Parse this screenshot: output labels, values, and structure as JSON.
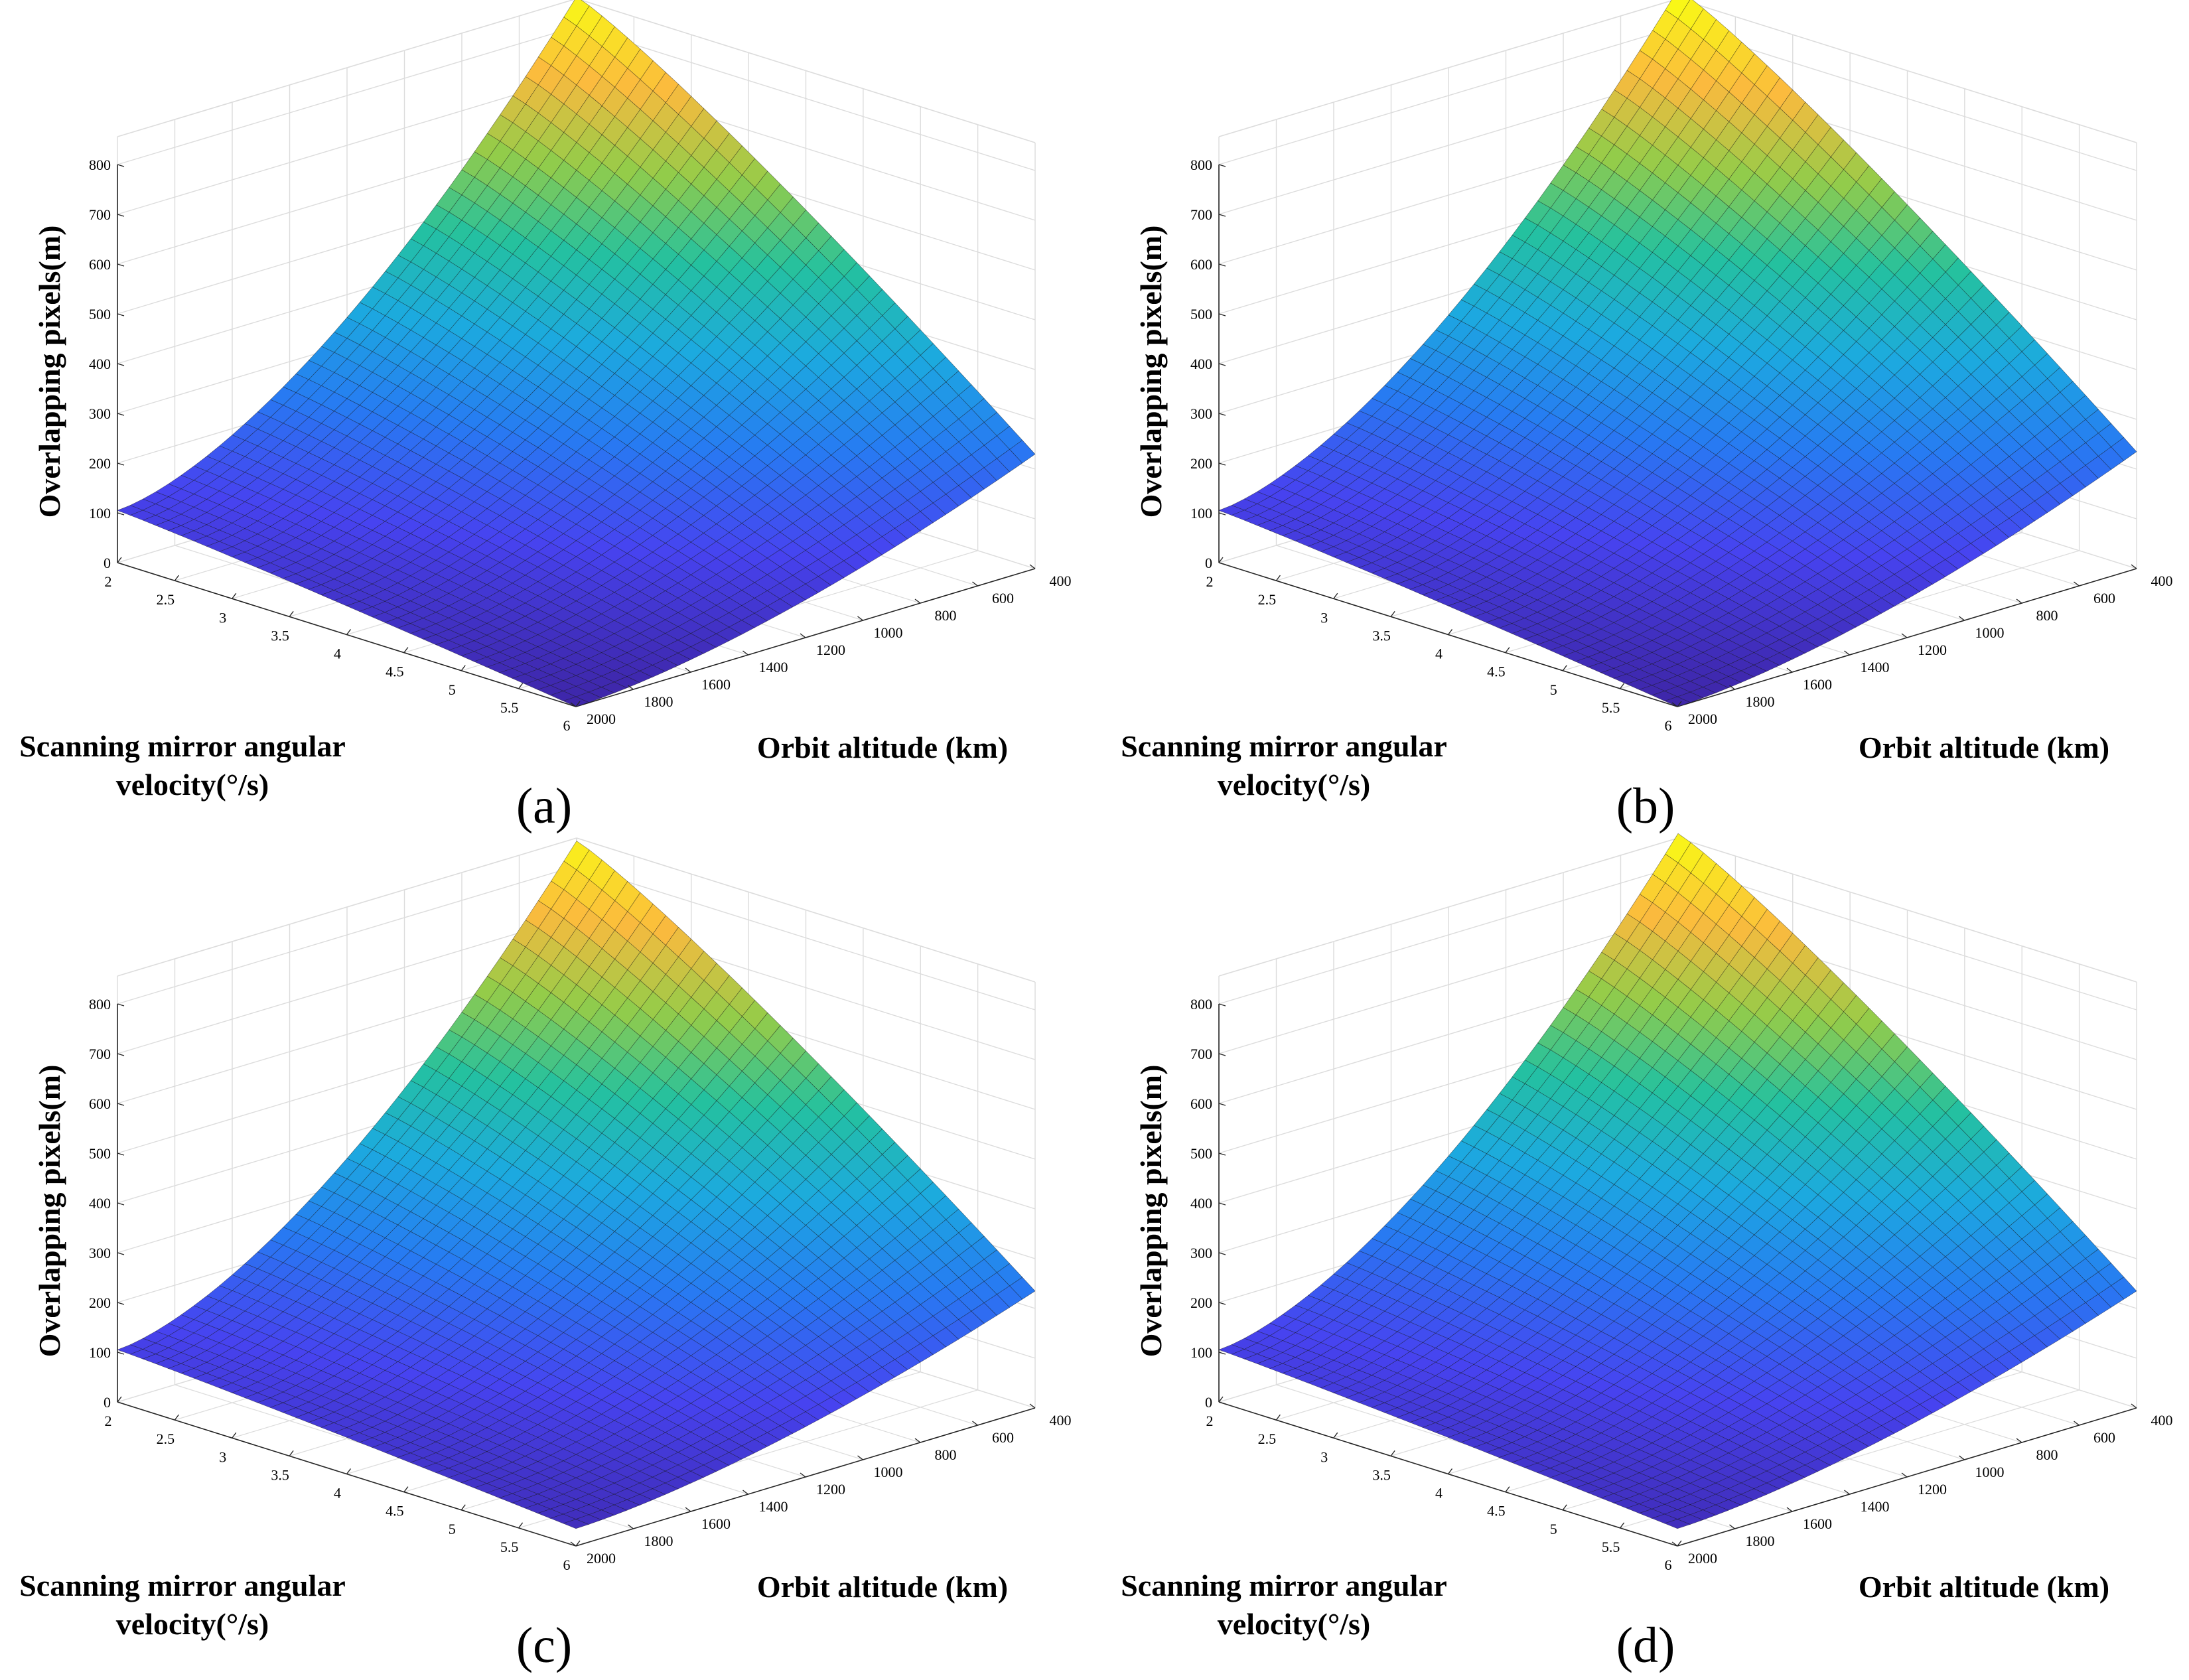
{
  "figure": {
    "colormap": [
      "#3e26a8",
      "#4743f0",
      "#277bf2",
      "#1caadf",
      "#24c19f",
      "#94cc49",
      "#fbba3e",
      "#f9fb15"
    ],
    "grid_color": "#dcdcdc",
    "mesh_color": "#111111"
  },
  "chart_data": [
    {
      "type": "surface",
      "panel_label": "(a)",
      "zlabel": "Overlapping pixels(m)",
      "xlabel_line1": "Scanning mirror angular",
      "xlabel_line2": "velocity(°/s)",
      "ylabel": "Orbit altitude (km)",
      "x_ticks": [
        "2",
        "2.5",
        "3",
        "3.5",
        "4",
        "4.5",
        "5",
        "5.5",
        "6"
      ],
      "y_ticks": [
        "400",
        "600",
        "800",
        "1000",
        "1200",
        "1400",
        "1600",
        "1800",
        "2000"
      ],
      "z_ticks": [
        "0",
        "100",
        "200",
        "300",
        "400",
        "500",
        "600",
        "700",
        "800"
      ],
      "xlim": [
        2,
        6
      ],
      "ylim": [
        400,
        2000
      ],
      "zlim": [
        0,
        800
      ],
      "corner_values": {
        "v2_h400": 860,
        "v2_h2000": 105,
        "v6_h400": 230,
        "v6_h2000": 0
      },
      "exponent": 1.6
    },
    {
      "type": "surface",
      "panel_label": "(b)",
      "zlabel": "Overlapping pixels(m)",
      "xlabel_line1": "Scanning mirror angular",
      "xlabel_line2": "velocity(°/s)",
      "ylabel": "Orbit altitude (km)",
      "x_ticks": [
        "2",
        "2.5",
        "3",
        "3.5",
        "4",
        "4.5",
        "5",
        "5.5",
        "6"
      ],
      "y_ticks": [
        "400",
        "600",
        "800",
        "1000",
        "1200",
        "1400",
        "1600",
        "1800",
        "2000"
      ],
      "z_ticks": [
        "0",
        "100",
        "200",
        "300",
        "400",
        "500",
        "600",
        "700",
        "800"
      ],
      "xlim": [
        2,
        6
      ],
      "ylim": [
        400,
        2000
      ],
      "zlim": [
        0,
        800
      ],
      "corner_values": {
        "v2_h400": 875,
        "v2_h2000": 105,
        "v6_h400": 235,
        "v6_h2000": 0
      },
      "exponent": 1.6
    },
    {
      "type": "surface",
      "panel_label": "(c)",
      "zlabel": "Overlapping pixels(m)",
      "xlabel_line1": "Scanning mirror angular",
      "xlabel_line2": "velocity(°/s)",
      "ylabel": "Orbit altitude (km)",
      "x_ticks": [
        "2",
        "2.5",
        "3",
        "3.5",
        "4",
        "4.5",
        "5",
        "5.5",
        "6"
      ],
      "y_ticks": [
        "400",
        "600",
        "800",
        "1000",
        "1200",
        "1400",
        "1600",
        "1800",
        "2000"
      ],
      "z_ticks": [
        "0",
        "100",
        "200",
        "300",
        "400",
        "500",
        "600",
        "700",
        "800"
      ],
      "xlim": [
        2,
        6
      ],
      "ylim": [
        400,
        2000
      ],
      "zlim": [
        0,
        800
      ],
      "corner_values": {
        "v2_h400": 850,
        "v2_h2000": 105,
        "v6_h400": 235,
        "v6_h2000": 35
      },
      "exponent": 1.6
    },
    {
      "type": "surface",
      "panel_label": "(d)",
      "zlabel": "Overlapping pixels(m)",
      "xlabel_line1": "Scanning mirror angular",
      "xlabel_line2": "velocity(°/s)",
      "ylabel": "Orbit altitude (km)",
      "x_ticks": [
        "2",
        "2.5",
        "3",
        "3.5",
        "4",
        "4.5",
        "5",
        "5.5",
        "6"
      ],
      "y_ticks": [
        "400",
        "600",
        "800",
        "1000",
        "1200",
        "1400",
        "1600",
        "1800",
        "2000"
      ],
      "z_ticks": [
        "0",
        "100",
        "200",
        "300",
        "400",
        "500",
        "600",
        "700",
        "800"
      ],
      "xlim": [
        2,
        6
      ],
      "ylim": [
        400,
        2000
      ],
      "zlim": [
        0,
        800
      ],
      "corner_values": {
        "v2_h400": 865,
        "v2_h2000": 105,
        "v6_h400": 235,
        "v6_h2000": 35
      },
      "exponent": 1.6
    }
  ]
}
